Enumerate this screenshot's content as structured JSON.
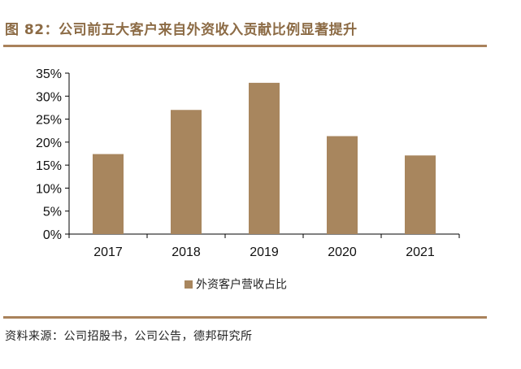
{
  "figure_title": "图 82：公司前五大客户来自外资收入贡献比例显著提升",
  "source_text": "资料来源：公司招股书，公司公告，德邦研究所",
  "colors": {
    "bar": "#a8865e",
    "accent": "#8c6b45",
    "rule": "#a9825b"
  },
  "chart_data": {
    "type": "bar",
    "title": "",
    "categories": [
      "2017",
      "2018",
      "2019",
      "2020",
      "2021"
    ],
    "series": [
      {
        "name": "外资客户营收占比",
        "values": [
          17.4,
          27.0,
          32.9,
          21.3,
          17.1
        ]
      }
    ],
    "ylim": [
      0,
      35
    ],
    "yticks": [
      "0%",
      "5%",
      "10%",
      "15%",
      "20%",
      "25%",
      "30%",
      "35%"
    ],
    "xlabel": "",
    "ylabel": "",
    "legend_position": "bottom",
    "grid": false
  }
}
